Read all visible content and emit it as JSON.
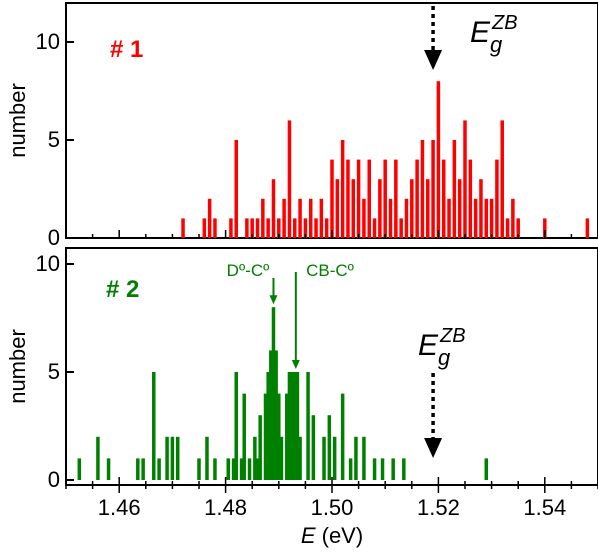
{
  "chart_data": [
    {
      "panel": "top",
      "type": "bar",
      "label": "# 1",
      "label_color": "#ff0000",
      "color": "#ff0000",
      "ylabel": "number",
      "ylim": [
        0,
        12
      ],
      "yticks": [
        0,
        5,
        10
      ],
      "xlim": [
        1.45,
        1.55
      ],
      "bins": [
        {
          "x": 1.472,
          "y": 1
        },
        {
          "x": 1.476,
          "y": 1
        },
        {
          "x": 1.477,
          "y": 2
        },
        {
          "x": 1.478,
          "y": 1
        },
        {
          "x": 1.481,
          "y": 1
        },
        {
          "x": 1.482,
          "y": 5
        },
        {
          "x": 1.484,
          "y": 1
        },
        {
          "x": 1.485,
          "y": 1
        },
        {
          "x": 1.486,
          "y": 1
        },
        {
          "x": 1.487,
          "y": 2
        },
        {
          "x": 1.488,
          "y": 1
        },
        {
          "x": 1.489,
          "y": 3
        },
        {
          "x": 1.49,
          "y": 1
        },
        {
          "x": 1.491,
          "y": 2
        },
        {
          "x": 1.492,
          "y": 6
        },
        {
          "x": 1.493,
          "y": 1
        },
        {
          "x": 1.494,
          "y": 2
        },
        {
          "x": 1.495,
          "y": 1
        },
        {
          "x": 1.496,
          "y": 2
        },
        {
          "x": 1.497,
          "y": 1
        },
        {
          "x": 1.498,
          "y": 2
        },
        {
          "x": 1.499,
          "y": 1
        },
        {
          "x": 1.5,
          "y": 4
        },
        {
          "x": 1.501,
          "y": 3
        },
        {
          "x": 1.502,
          "y": 5
        },
        {
          "x": 1.503,
          "y": 4
        },
        {
          "x": 1.504,
          "y": 3
        },
        {
          "x": 1.505,
          "y": 4
        },
        {
          "x": 1.506,
          "y": 2
        },
        {
          "x": 1.507,
          "y": 4
        },
        {
          "x": 1.508,
          "y": 1
        },
        {
          "x": 1.509,
          "y": 3
        },
        {
          "x": 1.51,
          "y": 4
        },
        {
          "x": 1.511,
          "y": 2
        },
        {
          "x": 1.512,
          "y": 4
        },
        {
          "x": 1.513,
          "y": 1
        },
        {
          "x": 1.514,
          "y": 2
        },
        {
          "x": 1.515,
          "y": 3
        },
        {
          "x": 1.516,
          "y": 4
        },
        {
          "x": 1.517,
          "y": 5
        },
        {
          "x": 1.518,
          "y": 3
        },
        {
          "x": 1.519,
          "y": 5
        },
        {
          "x": 1.52,
          "y": 8
        },
        {
          "x": 1.521,
          "y": 4
        },
        {
          "x": 1.522,
          "y": 2
        },
        {
          "x": 1.523,
          "y": 5
        },
        {
          "x": 1.524,
          "y": 3
        },
        {
          "x": 1.525,
          "y": 6
        },
        {
          "x": 1.526,
          "y": 4
        },
        {
          "x": 1.527,
          "y": 2
        },
        {
          "x": 1.528,
          "y": 3
        },
        {
          "x": 1.529,
          "y": 2
        },
        {
          "x": 1.53,
          "y": 2
        },
        {
          "x": 1.531,
          "y": 4
        },
        {
          "x": 1.532,
          "y": 6
        },
        {
          "x": 1.533,
          "y": 1
        },
        {
          "x": 1.534,
          "y": 2
        },
        {
          "x": 1.535,
          "y": 1
        },
        {
          "x": 1.54,
          "y": 1
        },
        {
          "x": 1.548,
          "y": 1
        }
      ],
      "annotations": [
        {
          "name": "Eg-ZB",
          "main": "E",
          "sub": "g",
          "sup": "ZB",
          "x": 1.519,
          "arrow": "dashed-down"
        }
      ]
    },
    {
      "panel": "bottom",
      "type": "bar",
      "label": "# 2",
      "label_color": "#008000",
      "color": "#008000",
      "ylabel": "number",
      "xlabel_main": "E",
      "xlabel_unit": " (eV)",
      "ylim": [
        0,
        11
      ],
      "yticks": [
        0,
        5,
        10
      ],
      "xlim": [
        1.45,
        1.55
      ],
      "xticks": [
        "1.46",
        "1.48",
        "1.50",
        "1.52",
        "1.54"
      ],
      "bins": [
        {
          "x": 1.4525,
          "y": 1
        },
        {
          "x": 1.456,
          "y": 2
        },
        {
          "x": 1.458,
          "y": 1
        },
        {
          "x": 1.4635,
          "y": 1
        },
        {
          "x": 1.4645,
          "y": 1
        },
        {
          "x": 1.4665,
          "y": 5
        },
        {
          "x": 1.4675,
          "y": 1
        },
        {
          "x": 1.469,
          "y": 2
        },
        {
          "x": 1.47,
          "y": 2
        },
        {
          "x": 1.471,
          "y": 2
        },
        {
          "x": 1.475,
          "y": 1
        },
        {
          "x": 1.4765,
          "y": 2
        },
        {
          "x": 1.478,
          "y": 1
        },
        {
          "x": 1.4805,
          "y": 1
        },
        {
          "x": 1.4815,
          "y": 1
        },
        {
          "x": 1.482,
          "y": 5
        },
        {
          "x": 1.483,
          "y": 1
        },
        {
          "x": 1.4835,
          "y": 4
        },
        {
          "x": 1.4845,
          "y": 1
        },
        {
          "x": 1.4855,
          "y": 2
        },
        {
          "x": 1.486,
          "y": 1
        },
        {
          "x": 1.4865,
          "y": 3
        },
        {
          "x": 1.4875,
          "y": 4
        },
        {
          "x": 1.488,
          "y": 5
        },
        {
          "x": 1.4885,
          "y": 6
        },
        {
          "x": 1.489,
          "y": 8
        },
        {
          "x": 1.4895,
          "y": 6
        },
        {
          "x": 1.49,
          "y": 4
        },
        {
          "x": 1.4905,
          "y": 2
        },
        {
          "x": 1.4915,
          "y": 4
        },
        {
          "x": 1.492,
          "y": 5
        },
        {
          "x": 1.4925,
          "y": 5
        },
        {
          "x": 1.493,
          "y": 5
        },
        {
          "x": 1.4935,
          "y": 5
        },
        {
          "x": 1.494,
          "y": 2
        },
        {
          "x": 1.4955,
          "y": 5
        },
        {
          "x": 1.4965,
          "y": 3
        },
        {
          "x": 1.4985,
          "y": 2
        },
        {
          "x": 1.4995,
          "y": 3
        },
        {
          "x": 1.5005,
          "y": 2
        },
        {
          "x": 1.502,
          "y": 4
        },
        {
          "x": 1.5035,
          "y": 1
        },
        {
          "x": 1.5045,
          "y": 2
        },
        {
          "x": 1.506,
          "y": 2
        },
        {
          "x": 1.508,
          "y": 1
        },
        {
          "x": 1.5095,
          "y": 1
        },
        {
          "x": 1.5115,
          "y": 1
        },
        {
          "x": 1.5135,
          "y": 1
        },
        {
          "x": 1.529,
          "y": 1
        }
      ],
      "annotations": [
        {
          "name": "D-C",
          "text": "Dº-Cº",
          "x": 1.489,
          "arrow_to_y": 8
        },
        {
          "name": "CB-C",
          "text": "CB-Cº",
          "x": 1.4932,
          "arrow_to_y": 5
        },
        {
          "name": "Eg-ZB",
          "main": "E",
          "sub": "g",
          "sup": "ZB",
          "x": 1.519,
          "arrow": "dashed-down"
        }
      ]
    }
  ]
}
